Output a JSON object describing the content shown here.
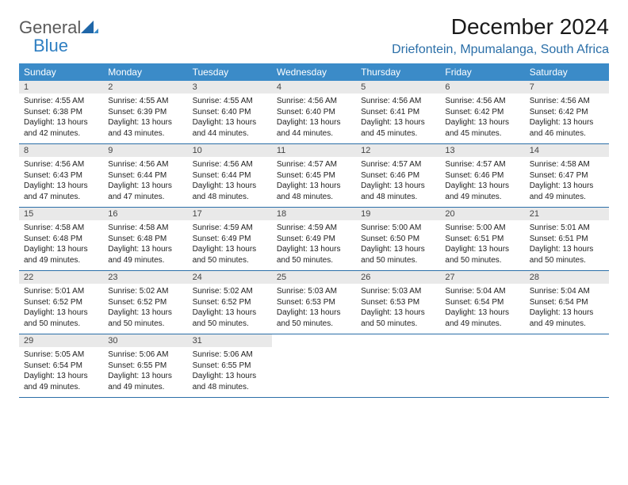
{
  "logo": {
    "general": "General",
    "blue": "Blue"
  },
  "title": "December 2024",
  "location": "Driefontein, Mpumalanga, South Africa",
  "colors": {
    "header_bg": "#3b8bc8",
    "header_text": "#ffffff",
    "daynum_bg": "#e9e9e9",
    "week_border": "#2b6fa8",
    "location_color": "#2b6fa8",
    "logo_gray": "#5a5a5a",
    "logo_blue": "#2f7fc2"
  },
  "weekdays": [
    "Sunday",
    "Monday",
    "Tuesday",
    "Wednesday",
    "Thursday",
    "Friday",
    "Saturday"
  ],
  "weeks": [
    [
      {
        "n": "1",
        "sr": "Sunrise: 4:55 AM",
        "ss": "Sunset: 6:38 PM",
        "d1": "Daylight: 13 hours",
        "d2": "and 42 minutes."
      },
      {
        "n": "2",
        "sr": "Sunrise: 4:55 AM",
        "ss": "Sunset: 6:39 PM",
        "d1": "Daylight: 13 hours",
        "d2": "and 43 minutes."
      },
      {
        "n": "3",
        "sr": "Sunrise: 4:55 AM",
        "ss": "Sunset: 6:40 PM",
        "d1": "Daylight: 13 hours",
        "d2": "and 44 minutes."
      },
      {
        "n": "4",
        "sr": "Sunrise: 4:56 AM",
        "ss": "Sunset: 6:40 PM",
        "d1": "Daylight: 13 hours",
        "d2": "and 44 minutes."
      },
      {
        "n": "5",
        "sr": "Sunrise: 4:56 AM",
        "ss": "Sunset: 6:41 PM",
        "d1": "Daylight: 13 hours",
        "d2": "and 45 minutes."
      },
      {
        "n": "6",
        "sr": "Sunrise: 4:56 AM",
        "ss": "Sunset: 6:42 PM",
        "d1": "Daylight: 13 hours",
        "d2": "and 45 minutes."
      },
      {
        "n": "7",
        "sr": "Sunrise: 4:56 AM",
        "ss": "Sunset: 6:42 PM",
        "d1": "Daylight: 13 hours",
        "d2": "and 46 minutes."
      }
    ],
    [
      {
        "n": "8",
        "sr": "Sunrise: 4:56 AM",
        "ss": "Sunset: 6:43 PM",
        "d1": "Daylight: 13 hours",
        "d2": "and 47 minutes."
      },
      {
        "n": "9",
        "sr": "Sunrise: 4:56 AM",
        "ss": "Sunset: 6:44 PM",
        "d1": "Daylight: 13 hours",
        "d2": "and 47 minutes."
      },
      {
        "n": "10",
        "sr": "Sunrise: 4:56 AM",
        "ss": "Sunset: 6:44 PM",
        "d1": "Daylight: 13 hours",
        "d2": "and 48 minutes."
      },
      {
        "n": "11",
        "sr": "Sunrise: 4:57 AM",
        "ss": "Sunset: 6:45 PM",
        "d1": "Daylight: 13 hours",
        "d2": "and 48 minutes."
      },
      {
        "n": "12",
        "sr": "Sunrise: 4:57 AM",
        "ss": "Sunset: 6:46 PM",
        "d1": "Daylight: 13 hours",
        "d2": "and 48 minutes."
      },
      {
        "n": "13",
        "sr": "Sunrise: 4:57 AM",
        "ss": "Sunset: 6:46 PM",
        "d1": "Daylight: 13 hours",
        "d2": "and 49 minutes."
      },
      {
        "n": "14",
        "sr": "Sunrise: 4:58 AM",
        "ss": "Sunset: 6:47 PM",
        "d1": "Daylight: 13 hours",
        "d2": "and 49 minutes."
      }
    ],
    [
      {
        "n": "15",
        "sr": "Sunrise: 4:58 AM",
        "ss": "Sunset: 6:48 PM",
        "d1": "Daylight: 13 hours",
        "d2": "and 49 minutes."
      },
      {
        "n": "16",
        "sr": "Sunrise: 4:58 AM",
        "ss": "Sunset: 6:48 PM",
        "d1": "Daylight: 13 hours",
        "d2": "and 49 minutes."
      },
      {
        "n": "17",
        "sr": "Sunrise: 4:59 AM",
        "ss": "Sunset: 6:49 PM",
        "d1": "Daylight: 13 hours",
        "d2": "and 50 minutes."
      },
      {
        "n": "18",
        "sr": "Sunrise: 4:59 AM",
        "ss": "Sunset: 6:49 PM",
        "d1": "Daylight: 13 hours",
        "d2": "and 50 minutes."
      },
      {
        "n": "19",
        "sr": "Sunrise: 5:00 AM",
        "ss": "Sunset: 6:50 PM",
        "d1": "Daylight: 13 hours",
        "d2": "and 50 minutes."
      },
      {
        "n": "20",
        "sr": "Sunrise: 5:00 AM",
        "ss": "Sunset: 6:51 PM",
        "d1": "Daylight: 13 hours",
        "d2": "and 50 minutes."
      },
      {
        "n": "21",
        "sr": "Sunrise: 5:01 AM",
        "ss": "Sunset: 6:51 PM",
        "d1": "Daylight: 13 hours",
        "d2": "and 50 minutes."
      }
    ],
    [
      {
        "n": "22",
        "sr": "Sunrise: 5:01 AM",
        "ss": "Sunset: 6:52 PM",
        "d1": "Daylight: 13 hours",
        "d2": "and 50 minutes."
      },
      {
        "n": "23",
        "sr": "Sunrise: 5:02 AM",
        "ss": "Sunset: 6:52 PM",
        "d1": "Daylight: 13 hours",
        "d2": "and 50 minutes."
      },
      {
        "n": "24",
        "sr": "Sunrise: 5:02 AM",
        "ss": "Sunset: 6:52 PM",
        "d1": "Daylight: 13 hours",
        "d2": "and 50 minutes."
      },
      {
        "n": "25",
        "sr": "Sunrise: 5:03 AM",
        "ss": "Sunset: 6:53 PM",
        "d1": "Daylight: 13 hours",
        "d2": "and 50 minutes."
      },
      {
        "n": "26",
        "sr": "Sunrise: 5:03 AM",
        "ss": "Sunset: 6:53 PM",
        "d1": "Daylight: 13 hours",
        "d2": "and 50 minutes."
      },
      {
        "n": "27",
        "sr": "Sunrise: 5:04 AM",
        "ss": "Sunset: 6:54 PM",
        "d1": "Daylight: 13 hours",
        "d2": "and 49 minutes."
      },
      {
        "n": "28",
        "sr": "Sunrise: 5:04 AM",
        "ss": "Sunset: 6:54 PM",
        "d1": "Daylight: 13 hours",
        "d2": "and 49 minutes."
      }
    ],
    [
      {
        "n": "29",
        "sr": "Sunrise: 5:05 AM",
        "ss": "Sunset: 6:54 PM",
        "d1": "Daylight: 13 hours",
        "d2": "and 49 minutes."
      },
      {
        "n": "30",
        "sr": "Sunrise: 5:06 AM",
        "ss": "Sunset: 6:55 PM",
        "d1": "Daylight: 13 hours",
        "d2": "and 49 minutes."
      },
      {
        "n": "31",
        "sr": "Sunrise: 5:06 AM",
        "ss": "Sunset: 6:55 PM",
        "d1": "Daylight: 13 hours",
        "d2": "and 48 minutes."
      },
      null,
      null,
      null,
      null
    ]
  ]
}
